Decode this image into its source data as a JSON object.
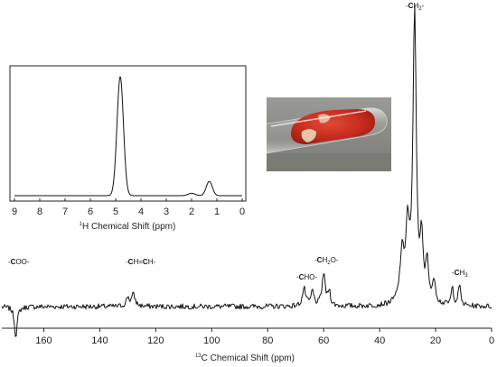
{
  "chart_data": [
    {
      "type": "line",
      "name": "13C NMR spectrum",
      "xlabel_pre": "",
      "xlabel_sup": "13",
      "xlabel_post": "C Chemical Shift (ppm)",
      "xlim": [
        175,
        0
      ],
      "xticks": [
        "160",
        "140",
        "120",
        "100",
        "80",
        "60",
        "40",
        "20",
        "0"
      ],
      "xtick_values": [
        160,
        140,
        120,
        100,
        80,
        60,
        40,
        20,
        0
      ],
      "grid": false,
      "peaks": [
        {
          "x": 170,
          "height": -0.1,
          "width": 0.6
        },
        {
          "x": 128,
          "height": 0.04,
          "width": 0.8
        },
        {
          "x": 130,
          "height": 0.03,
          "width": 0.6
        },
        {
          "x": 67,
          "height": 0.06,
          "width": 0.7
        },
        {
          "x": 64,
          "height": 0.05,
          "width": 0.6
        },
        {
          "x": 60,
          "height": 0.11,
          "width": 0.7
        },
        {
          "x": 58,
          "height": 0.05,
          "width": 0.5
        },
        {
          "x": 32,
          "height": 0.16,
          "width": 0.9
        },
        {
          "x": 30,
          "height": 0.24,
          "width": 0.8
        },
        {
          "x": 27.5,
          "height": 1.0,
          "width": 0.7
        },
        {
          "x": 25,
          "height": 0.2,
          "width": 0.6
        },
        {
          "x": 23,
          "height": 0.14,
          "width": 0.6
        },
        {
          "x": 20.5,
          "height": 0.08,
          "width": 0.6
        },
        {
          "x": 14,
          "height": 0.06,
          "width": 0.5
        },
        {
          "x": 11.5,
          "height": 0.07,
          "width": 0.5
        }
      ],
      "annotations": [
        {
          "id": "coo",
          "pre": "-",
          "bold": "C",
          "post": "OO-",
          "sub": "",
          "sub_post": ""
        },
        {
          "id": "ch-ch",
          "pre": "-",
          "bold": "C",
          "post": "H=",
          "bold2": "C",
          "post2": "H-"
        },
        {
          "id": "cho",
          "pre": "-",
          "bold": "C",
          "post": "HO-",
          "sub": "",
          "sub_post": ""
        },
        {
          "id": "ch2o",
          "pre": "-",
          "bold": "C",
          "post": "H",
          "sub": "2",
          "sub_post": "O-"
        },
        {
          "id": "ch2",
          "pre": "-",
          "bold": "C",
          "post": "H",
          "sub": "2",
          "sub_post": "-"
        },
        {
          "id": "ch3",
          "pre": "-",
          "bold": "C",
          "post": "H",
          "sub": "3",
          "sub_post": ""
        }
      ]
    },
    {
      "type": "line",
      "name": "1H NMR spectrum (inset)",
      "xlabel_pre": "",
      "xlabel_sup": "1",
      "xlabel_post": "H Chemical Shift (ppm)",
      "xlim": [
        9,
        0
      ],
      "xticks": [
        "9",
        "8",
        "7",
        "6",
        "5",
        "4",
        "3",
        "2",
        "1",
        "0"
      ],
      "xtick_values": [
        9,
        8,
        7,
        6,
        5,
        4,
        3,
        2,
        1,
        0
      ],
      "grid": false,
      "peaks": [
        {
          "x": 4.82,
          "height": 1.0,
          "width": 0.18
        },
        {
          "x": 1.3,
          "height": 0.12,
          "width": 0.17
        },
        {
          "x": 2.0,
          "height": 0.02,
          "width": 0.2
        }
      ]
    }
  ],
  "photo": {
    "name": "sample-tube-photo",
    "background_color": "#8d8d8a",
    "sample_color": "#c42a1c"
  }
}
